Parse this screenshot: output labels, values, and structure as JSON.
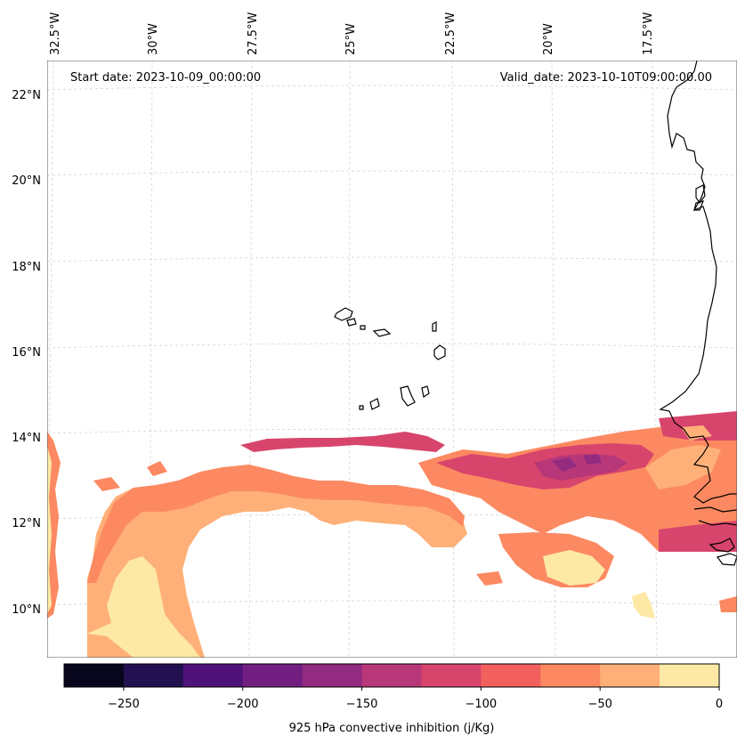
{
  "header": {
    "start_date": "Start date: 2023-10-09_00:00:00",
    "valid_date": "Valid_date: 2023-10-10T09:00:00.00"
  },
  "map": {
    "lon_labels": [
      "32.5°W",
      "30°W",
      "27.5°W",
      "25°W",
      "22.5°W",
      "20°W",
      "17.5°W"
    ],
    "lat_labels": [
      "22°N",
      "20°N",
      "18°N",
      "16°N",
      "14°N",
      "12°N",
      "10°N"
    ],
    "field": "925 hPa convective inhibition",
    "coastline_color": "#000000",
    "gridline_color": "#cccccc"
  },
  "colorbar": {
    "label": "925 hPa convective inhibition (j/Kg)",
    "tick_labels": [
      "−250",
      "−200",
      "−150",
      "−100",
      "−50",
      "0"
    ],
    "levels": [
      -275,
      -250,
      -225,
      -200,
      -175,
      -150,
      -125,
      -100,
      -75,
      -50,
      -25,
      0
    ],
    "colors": [
      "#07061c",
      "#221150",
      "#4f127b",
      "#721f81",
      "#932b80",
      "#b73779",
      "#d8456c",
      "#f1605d",
      "#fc8961",
      "#feb078",
      "#fde9a5"
    ]
  }
}
